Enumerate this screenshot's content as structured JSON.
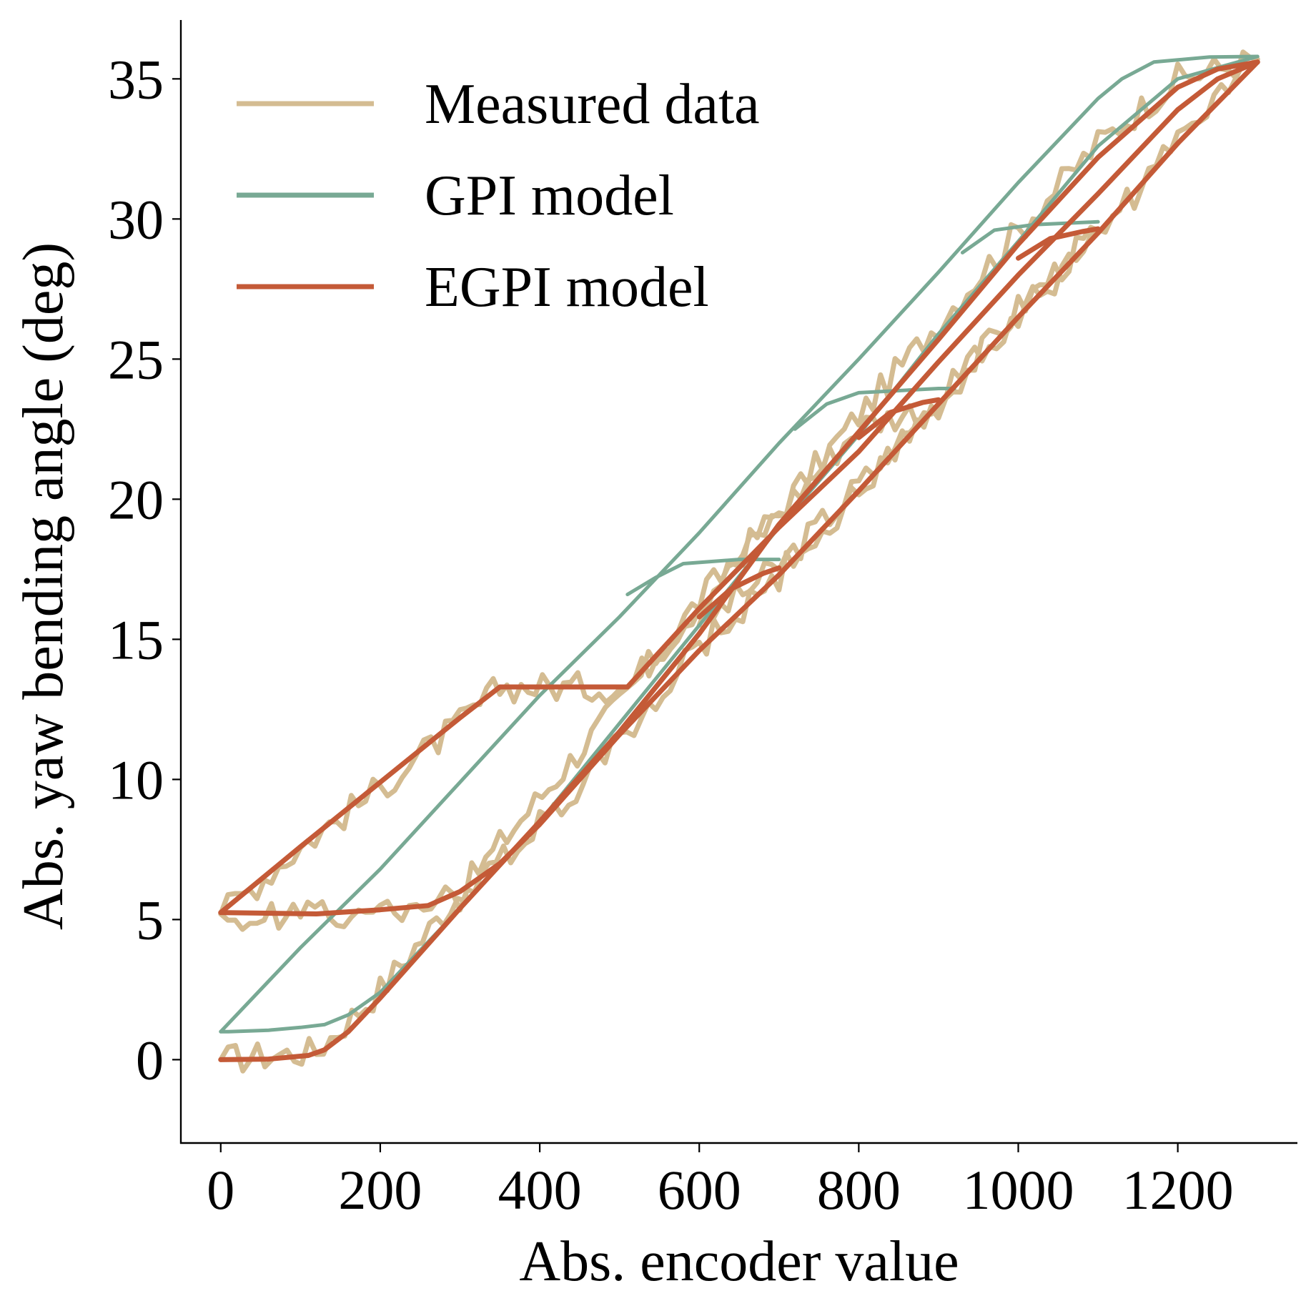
{
  "chart_data": {
    "type": "line",
    "title": "",
    "xlabel": "Abs. encoder value",
    "ylabel": "Abs. yaw bending angle (deg)",
    "xlim": [
      -50,
      1350
    ],
    "ylim": [
      -3,
      37.1
    ],
    "xticks": [
      0,
      200,
      400,
      600,
      800,
      1000,
      1200
    ],
    "yticks": [
      0,
      5,
      10,
      15,
      20,
      25,
      30,
      35
    ],
    "grid": false,
    "legend": "top-left",
    "colors": {
      "measured": "#d4bc92",
      "gpi": "#78a994",
      "egpi": "#c45a37",
      "axis": "#000000"
    },
    "series": [
      {
        "name": "Measured data",
        "color": "#d4bc92",
        "width": 7,
        "noisy": true,
        "segments": [
          {
            "points": [
              [
                0,
                0
              ],
              [
                120,
                0.3
              ],
              [
                200,
                2.5
              ],
              [
                350,
                7.7
              ],
              [
                500,
                12.7
              ],
              [
                600,
                16.4
              ],
              [
                700,
                19.6
              ],
              [
                800,
                23.0
              ],
              [
                900,
                26.3
              ],
              [
                1000,
                29.6
              ],
              [
                1100,
                32.7
              ],
              [
                1200,
                35.0
              ],
              [
                1300,
                35.7
              ]
            ]
          },
          {
            "points": [
              [
                1300,
                35.7
              ],
              [
                1200,
                32.7
              ],
              [
                1100,
                29.4
              ],
              [
                1000,
                26.6
              ],
              [
                900,
                23.5
              ],
              [
                800,
                20.3
              ],
              [
                700,
                17.3
              ],
              [
                600,
                14.7
              ],
              [
                500,
                11.3
              ],
              [
                400,
                8.4
              ],
              [
                300,
                5.8
              ],
              [
                200,
                5.3
              ],
              [
                100,
                5.2
              ],
              [
                0,
                5.2
              ]
            ]
          },
          {
            "points": [
              [
                0,
                5.2
              ],
              [
                100,
                7.6
              ],
              [
                200,
                9.7
              ],
              [
                300,
                12.0
              ],
              [
                350,
                13.3
              ],
              [
                510,
                13.3
              ],
              [
                600,
                16.3
              ],
              [
                700,
                19.5
              ],
              [
                800,
                22.6
              ],
              [
                900,
                23.4
              ]
            ]
          },
          {
            "points": [
              [
                600,
                15.5
              ],
              [
                700,
                17.6
              ],
              [
                800,
                20.5
              ],
              [
                900,
                23.4
              ],
              [
                1000,
                26.8
              ],
              [
                1100,
                29.6
              ]
            ]
          }
        ]
      },
      {
        "name": "GPI model",
        "color": "#78a994",
        "width": 5,
        "noisy": false,
        "segments": [
          {
            "points": [
              [
                0,
                1.0
              ],
              [
                10,
                1.0
              ],
              [
                60,
                1.05
              ],
              [
                100,
                1.15
              ],
              [
                130,
                1.25
              ],
              [
                160,
                1.6
              ],
              [
                200,
                2.4
              ],
              [
                300,
                5.4
              ],
              [
                400,
                8.5
              ],
              [
                500,
                12.0
              ],
              [
                580,
                14.8
              ],
              [
                700,
                19.0
              ],
              [
                800,
                22.3
              ],
              [
                900,
                25.9
              ],
              [
                1000,
                29.2
              ],
              [
                1100,
                32.6
              ],
              [
                1200,
                35.0
              ],
              [
                1300,
                35.8
              ]
            ]
          },
          {
            "points": [
              [
                1300,
                35.8
              ],
              [
                1240,
                35.78
              ],
              [
                1170,
                35.6
              ],
              [
                1130,
                35.0
              ],
              [
                1100,
                34.3
              ],
              [
                1000,
                31.3
              ],
              [
                900,
                28.1
              ],
              [
                800,
                25.0
              ],
              [
                700,
                22.0
              ],
              [
                600,
                18.8
              ],
              [
                500,
                15.8
              ],
              [
                400,
                13.0
              ],
              [
                300,
                9.9
              ],
              [
                200,
                6.8
              ],
              [
                100,
                4.0
              ],
              [
                0,
                1.0
              ]
            ]
          },
          {
            "points": [
              [
                510,
                16.6
              ],
              [
                545,
                17.2
              ],
              [
                580,
                17.7
              ],
              [
                650,
                17.85
              ],
              [
                700,
                17.85
              ]
            ]
          },
          {
            "points": [
              [
                720,
                22.5
              ],
              [
                760,
                23.4
              ],
              [
                800,
                23.8
              ],
              [
                900,
                23.95
              ],
              [
                920,
                23.95
              ]
            ]
          },
          {
            "points": [
              [
                930,
                28.8
              ],
              [
                970,
                29.6
              ],
              [
                1020,
                29.8
              ],
              [
                1100,
                29.9
              ]
            ]
          }
        ]
      },
      {
        "name": "EGPI model",
        "color": "#c45a37",
        "width": 7,
        "noisy": false,
        "segments": [
          {
            "points": [
              [
                0,
                0
              ],
              [
                60,
                0.02
              ],
              [
                110,
                0.15
              ],
              [
                130,
                0.35
              ],
              [
                160,
                1.0
              ],
              [
                200,
                2.2
              ],
              [
                300,
                5.4
              ],
              [
                400,
                8.5
              ],
              [
                500,
                11.7
              ],
              [
                600,
                15.2
              ],
              [
                700,
                19.1
              ],
              [
                800,
                22.4
              ],
              [
                900,
                25.7
              ],
              [
                1000,
                29.1
              ],
              [
                1100,
                32.2
              ],
              [
                1200,
                34.7
              ],
              [
                1250,
                35.35
              ],
              [
                1300,
                35.6
              ]
            ]
          },
          {
            "points": [
              [
                1300,
                35.6
              ],
              [
                1200,
                32.7
              ],
              [
                1100,
                29.5
              ],
              [
                1000,
                26.5
              ],
              [
                900,
                23.4
              ],
              [
                800,
                20.3
              ],
              [
                700,
                17.3
              ],
              [
                600,
                14.6
              ],
              [
                500,
                11.6
              ],
              [
                400,
                8.4
              ],
              [
                350,
                7.0
              ],
              [
                300,
                6.0
              ],
              [
                260,
                5.5
              ],
              [
                200,
                5.35
              ],
              [
                120,
                5.2
              ],
              [
                0,
                5.25
              ]
            ]
          },
          {
            "points": [
              [
                0,
                5.25
              ],
              [
                100,
                7.6
              ],
              [
                200,
                9.9
              ],
              [
                300,
                12.2
              ],
              [
                350,
                13.3
              ],
              [
                510,
                13.3
              ],
              [
                600,
                16.1
              ],
              [
                700,
                19.0
              ],
              [
                800,
                21.7
              ],
              [
                900,
                24.9
              ],
              [
                1000,
                28.0
              ],
              [
                1100,
                30.9
              ],
              [
                1200,
                33.9
              ],
              [
                1250,
                35.0
              ],
              [
                1300,
                35.6
              ]
            ]
          },
          {
            "points": [
              [
                600,
                15.8
              ],
              [
                640,
                16.8
              ],
              [
                680,
                17.35
              ],
              [
                700,
                17.55
              ]
            ]
          },
          {
            "points": [
              [
                800,
                22.2
              ],
              [
                840,
                23.1
              ],
              [
                880,
                23.45
              ],
              [
                900,
                23.55
              ]
            ]
          },
          {
            "points": [
              [
                1000,
                28.6
              ],
              [
                1040,
                29.3
              ],
              [
                1080,
                29.55
              ],
              [
                1100,
                29.65
              ]
            ]
          }
        ]
      }
    ]
  }
}
